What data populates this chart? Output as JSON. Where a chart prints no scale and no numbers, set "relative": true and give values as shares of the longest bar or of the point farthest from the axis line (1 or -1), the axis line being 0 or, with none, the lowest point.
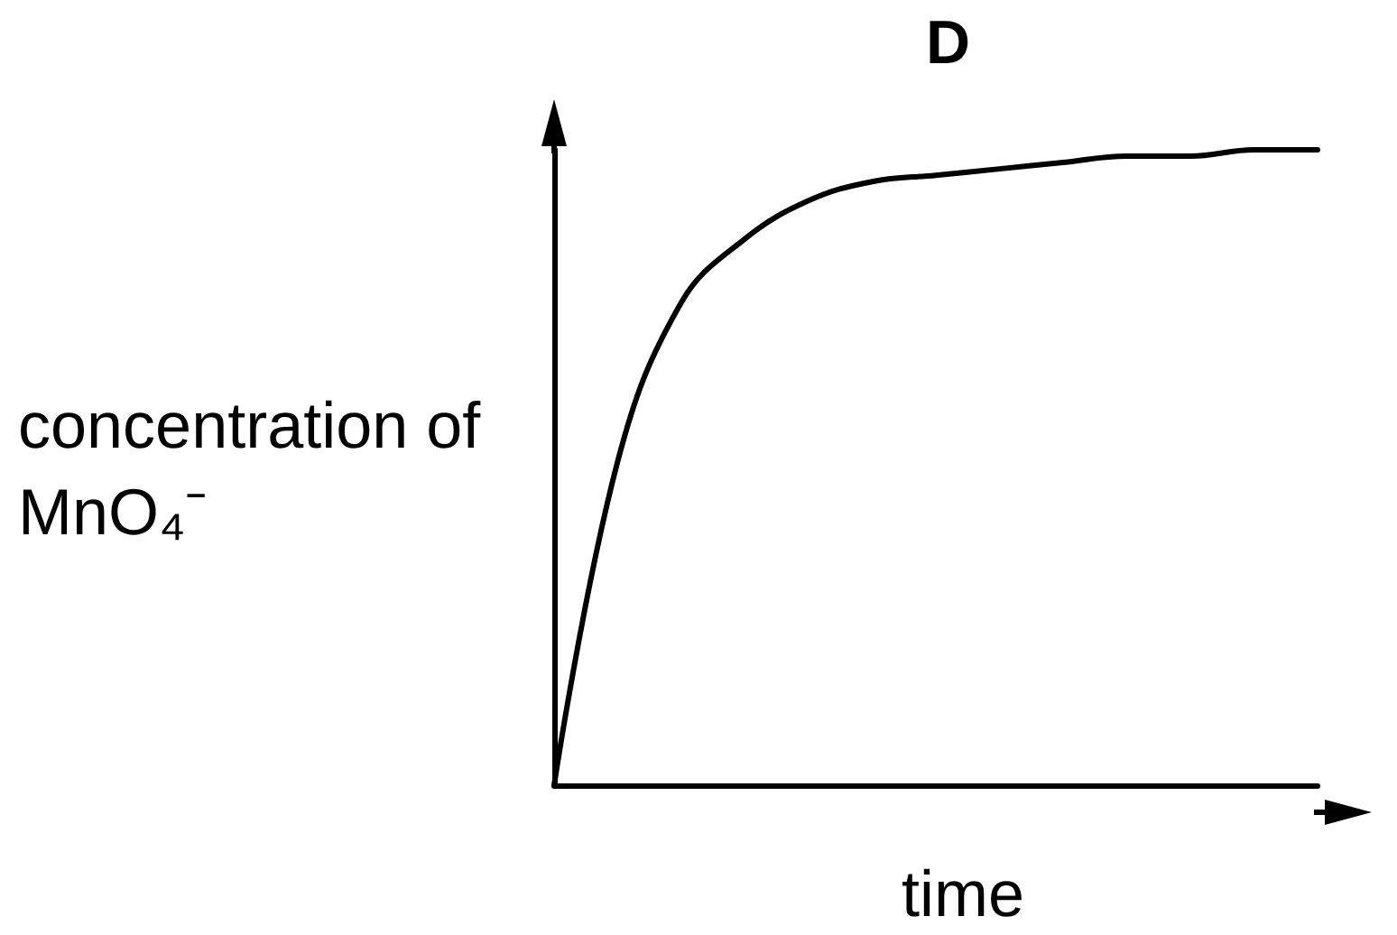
{
  "chart_data": {
    "type": "line",
    "title": "D",
    "xlabel": "time",
    "ylabel": "concentration of MnO₄⁻",
    "relative": true,
    "grid": false,
    "marker": "none",
    "line_style": "solid",
    "categories": [
      null,
      null,
      null,
      null,
      null,
      null,
      null,
      null,
      null,
      null,
      null,
      null,
      null
    ],
    "series": [
      {
        "color": "#000000",
        "values": [
          0,
          0.51,
          0.76,
          0.86,
          0.92,
          0.95,
          0.96,
          0.97,
          0.98,
          0.99,
          0.99,
          1,
          1
        ]
      }
    ]
  }
}
